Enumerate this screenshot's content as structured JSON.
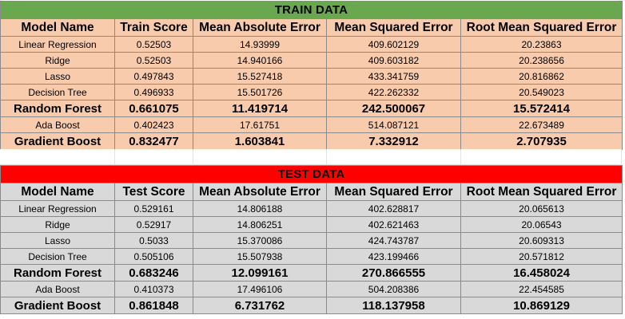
{
  "train": {
    "title": "TRAIN DATA",
    "headers": [
      "Model Name",
      "Train Score",
      "Mean Absolute Error",
      "Mean Squared Error",
      "Root Mean Squared Error"
    ],
    "rows": [
      [
        "Linear Regression",
        "0.52503",
        "14.93999",
        "409.602129",
        "20.23863"
      ],
      [
        "Ridge",
        "0.52503",
        "14.940166",
        "409.603182",
        "20.238656"
      ],
      [
        "Lasso",
        "0.497843",
        "15.527418",
        "433.341759",
        "20.816862"
      ],
      [
        "Decision Tree",
        "0.496933",
        "15.501726",
        "422.262332",
        "20.549023"
      ],
      [
        "Random Forest",
        "0.661075",
        "11.419714",
        "242.500067",
        "15.572414"
      ],
      [
        "Ada Boost",
        "0.402423",
        "17.61751",
        "514.087121",
        "22.673489"
      ],
      [
        "Gradient Boost",
        "0.832477",
        "1.603841",
        "7.332912",
        "2.707935"
      ]
    ]
  },
  "test": {
    "title": "TEST DATA",
    "headers": [
      "Model Name",
      "Test Score",
      "Mean Absolute Error",
      "Mean Squared Error",
      "Root Mean Squared Error"
    ],
    "rows": [
      [
        "Linear Regression",
        "0.529161",
        "14.806188",
        "402.628817",
        "20.065613"
      ],
      [
        "Ridge",
        "0.52917",
        "14.806251",
        "402.621463",
        "20.06543"
      ],
      [
        "Lasso",
        "0.5033",
        "15.370086",
        "424.743787",
        "20.609313"
      ],
      [
        "Decision Tree",
        "0.505106",
        "15.507938",
        "423.199466",
        "20.571812"
      ],
      [
        "Random Forest",
        "0.683246",
        "12.099161",
        "270.866555",
        "16.458024"
      ],
      [
        "Ada Boost",
        "0.410373",
        "17.496106",
        "504.208386",
        "22.454585"
      ],
      [
        "Gradient Boost",
        "0.861848",
        "6.731762",
        "118.137958",
        "10.869129"
      ]
    ]
  },
  "colors": {
    "train_banner": "#6aa84f",
    "train_fill": "#f8cbad",
    "test_banner": "#ff0000",
    "test_fill": "#d9d9d9"
  }
}
